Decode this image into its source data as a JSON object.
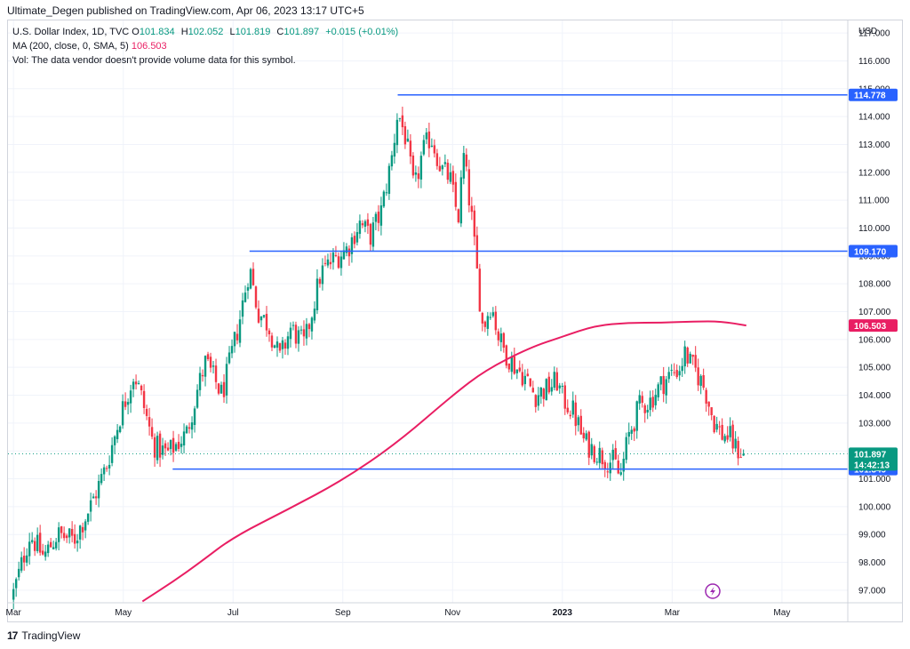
{
  "header": {
    "text": "Ultimate_Degen published on TradingView.com, Apr 06, 2023 13:17 UTC+5"
  },
  "legend": {
    "symbol": "U.S. Dollar Index, 1D, TVC",
    "open_label": "O",
    "open": "101.834",
    "high_label": "H",
    "high": "102.052",
    "low_label": "L",
    "low": "101.819",
    "close_label": "C",
    "close": "101.897",
    "change": "+0.015 (+0.01%)",
    "ma_label": "MA (200, close, 0, SMA, 5)",
    "ma_value": "106.503",
    "vol_text": "Vol: The data vendor doesn't provide volume data for this symbol."
  },
  "footer": {
    "brand": "TradingView",
    "logo": "17"
  },
  "colors": {
    "up": "#089981",
    "down": "#f23645",
    "ma": "#e91e63",
    "level": "#2962ff",
    "grid": "#f0f3fa",
    "last_price": "#089981"
  },
  "chart_data": {
    "type": "candlestick",
    "currency_label": "USD",
    "y_ticks": [
      97,
      98,
      99,
      100,
      101,
      102,
      103,
      104,
      105,
      106,
      107,
      108,
      109,
      110,
      111,
      112,
      113,
      114,
      115,
      116,
      117
    ],
    "y_tick_labels": [
      "97.000",
      "98.000",
      "99.000",
      "100.000",
      "101.000",
      "102.000",
      "103.000",
      "104.000",
      "105.000",
      "106.000",
      "107.000",
      "108.000",
      "109.000",
      "110.000",
      "111.000",
      "112.000",
      "113.000",
      "114.000",
      "115.000",
      "116.000",
      "117.000"
    ],
    "ylim": [
      96.55,
      117.45
    ],
    "x_labels": [
      {
        "label": "Mar",
        "month": 0
      },
      {
        "label": "May",
        "month": 2
      },
      {
        "label": "Jul",
        "month": 4
      },
      {
        "label": "Sep",
        "month": 6
      },
      {
        "label": "Nov",
        "month": 8
      },
      {
        "label": "2023",
        "month": 10
      },
      {
        "label": "Mar",
        "month": 12
      },
      {
        "label": "May",
        "month": 14
      }
    ],
    "close_anchors": [
      [
        0.0,
        96.9
      ],
      [
        0.3,
        99.0
      ],
      [
        0.55,
        98.2
      ],
      [
        0.8,
        99.0
      ],
      [
        1.1,
        98.8
      ],
      [
        1.4,
        100.0
      ],
      [
        1.7,
        101.5
      ],
      [
        1.95,
        103.3
      ],
      [
        2.2,
        104.8
      ],
      [
        2.35,
        103.8
      ],
      [
        2.55,
        102.2
      ],
      [
        2.8,
        101.9
      ],
      [
        3.15,
        102.6
      ],
      [
        3.35,
        104.2
      ],
      [
        3.5,
        105.2
      ],
      [
        3.8,
        104.0
      ],
      [
        4.1,
        106.5
      ],
      [
        4.3,
        108.6
      ],
      [
        4.45,
        107.0
      ],
      [
        4.65,
        106.5
      ],
      [
        4.85,
        105.3
      ],
      [
        5.05,
        106.4
      ],
      [
        5.3,
        105.8
      ],
      [
        5.6,
        108.4
      ],
      [
        5.85,
        108.9
      ],
      [
        6.1,
        109.3
      ],
      [
        6.3,
        110.2
      ],
      [
        6.5,
        109.7
      ],
      [
        6.7,
        110.6
      ],
      [
        6.9,
        112.6
      ],
      [
        7.0,
        114.2
      ],
      [
        7.15,
        113.2
      ],
      [
        7.3,
        111.3
      ],
      [
        7.45,
        112.7
      ],
      [
        7.6,
        113.3
      ],
      [
        7.8,
        112.1
      ],
      [
        7.95,
        111.8
      ],
      [
        8.1,
        110.3
      ],
      [
        8.2,
        112.6
      ],
      [
        8.35,
        110.3
      ],
      [
        8.45,
        108.3
      ],
      [
        8.55,
        106.4
      ],
      [
        8.7,
        107.3
      ],
      [
        8.85,
        106.0
      ],
      [
        9.0,
        105.4
      ],
      [
        9.15,
        105.0
      ],
      [
        9.3,
        104.7
      ],
      [
        9.5,
        104.0
      ],
      [
        9.7,
        104.2
      ],
      [
        9.9,
        104.5
      ],
      [
        10.0,
        103.9
      ],
      [
        10.2,
        103.4
      ],
      [
        10.4,
        102.3
      ],
      [
        10.6,
        102.0
      ],
      [
        10.8,
        101.7
      ],
      [
        10.95,
        101.6
      ],
      [
        11.05,
        101.0
      ],
      [
        11.2,
        102.5
      ],
      [
        11.4,
        103.6
      ],
      [
        11.6,
        103.8
      ],
      [
        11.8,
        104.4
      ],
      [
        12.0,
        104.8
      ],
      [
        12.15,
        105.0
      ],
      [
        12.25,
        105.6
      ],
      [
        12.3,
        105.2
      ],
      [
        12.45,
        104.8
      ],
      [
        12.6,
        104.2
      ],
      [
        12.75,
        103.1
      ],
      [
        12.9,
        102.6
      ],
      [
        13.05,
        102.5
      ],
      [
        13.15,
        102.1
      ],
      [
        13.3,
        101.897
      ]
    ],
    "ma_200": {
      "name": "MA (200, close, 0, SMA, 5)",
      "x": [
        2.35,
        2.9,
        3.4,
        4.0,
        5.0,
        6.0,
        7.0,
        8.0,
        8.6,
        9.4,
        10.0,
        10.6,
        11.2,
        11.8,
        12.4,
        12.9,
        13.35
      ],
      "y": [
        96.6,
        97.3,
        98.0,
        98.9,
        99.9,
        100.95,
        102.3,
        104.0,
        104.9,
        105.7,
        106.1,
        106.5,
        106.6,
        106.6,
        106.65,
        106.65,
        106.5
      ]
    },
    "levels": [
      {
        "value": 114.778,
        "label": "114.778",
        "from_month": 7.0
      },
      {
        "value": 109.17,
        "label": "109.170",
        "from_month": 4.3
      },
      {
        "value": 101.349,
        "label": "101.349",
        "from_month": 2.9
      }
    ],
    "last_price": {
      "value": 101.897,
      "label": "101.897",
      "countdown": "14:42:13"
    },
    "ma_tag": {
      "value": 106.503,
      "label": "106.503"
    },
    "x_domain": [
      -0.1,
      15.2
    ]
  }
}
